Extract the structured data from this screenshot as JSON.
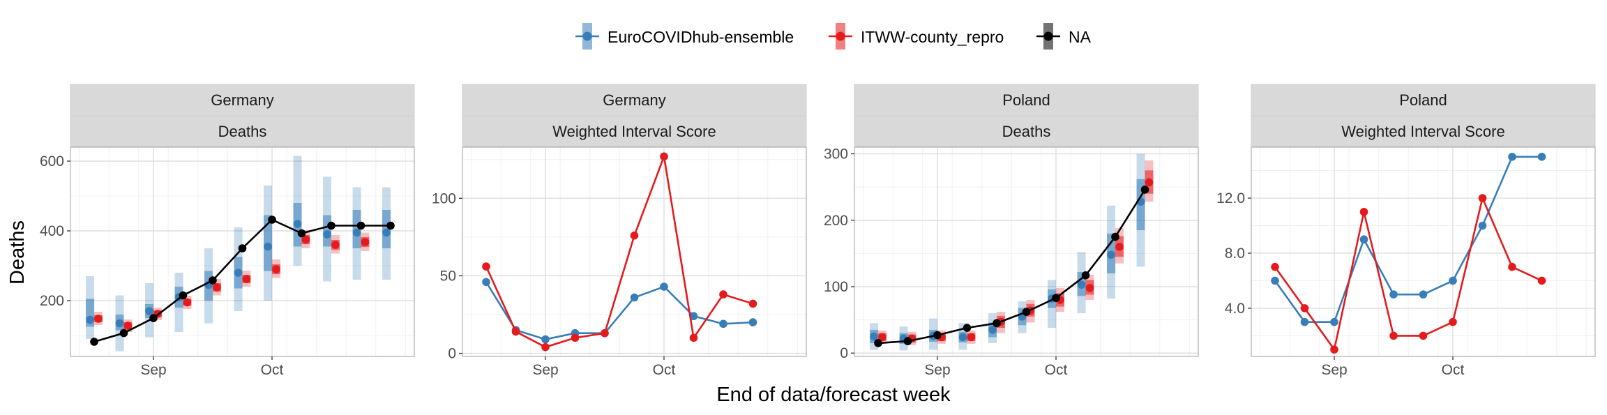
{
  "legend": {
    "items": [
      {
        "label": "EuroCOVIDhub-ensemble",
        "color": "#377EB8"
      },
      {
        "label": "ITWW-county_repro",
        "color": "#E41A1C"
      },
      {
        "label": "NA",
        "color": "#000000"
      }
    ]
  },
  "xlabel": "End of data/forecast week",
  "ylabel": "Deaths",
  "chart_data": [
    {
      "type": "line",
      "facet_top": "Germany",
      "facet_bottom": "Deaths",
      "grid": true,
      "ylim": [
        40,
        640
      ],
      "yticks": [
        200,
        400,
        600
      ],
      "ytick_labels": [
        "200",
        "400",
        "600"
      ],
      "xticks": [
        3,
        7
      ],
      "xtick_labels": [
        "Sep",
        "Oct"
      ],
      "observed": {
        "x": [
          1,
          2,
          3,
          4,
          5,
          6,
          7,
          8,
          9,
          10,
          11
        ],
        "values": [
          82,
          107,
          150,
          215,
          258,
          350,
          432,
          393,
          415,
          415,
          415
        ]
      },
      "series": [
        {
          "name": "EuroCOVIDhub-ensemble",
          "color": "#377EB8",
          "x": [
            1,
            2,
            3,
            4,
            5,
            6,
            7,
            8,
            9,
            10,
            11
          ],
          "values": [
            145,
            135,
            170,
            210,
            245,
            280,
            355,
            420,
            390,
            395,
            395
          ],
          "inner": [
            [
              125,
              205
            ],
            [
              115,
              160
            ],
            [
              150,
              190
            ],
            [
              180,
              240
            ],
            [
              200,
              285
            ],
            [
              235,
              325
            ],
            [
              285,
              445
            ],
            [
              355,
              480
            ],
            [
              355,
              445
            ],
            [
              350,
              460
            ],
            [
              350,
              460
            ]
          ],
          "outer": [
            [
              90,
              270
            ],
            [
              55,
              215
            ],
            [
              95,
              250
            ],
            [
              110,
              280
            ],
            [
              135,
              350
            ],
            [
              170,
              410
            ],
            [
              200,
              530
            ],
            [
              300,
              615
            ],
            [
              255,
              555
            ],
            [
              260,
              525
            ],
            [
              260,
              525
            ]
          ]
        },
        {
          "name": "ITWW-county_repro",
          "color": "#E41A1C",
          "x": [
            1,
            2,
            3,
            4,
            5,
            6,
            7,
            8,
            9,
            10
          ],
          "values": [
            148,
            128,
            162,
            195,
            238,
            262,
            290,
            375,
            360,
            368
          ],
          "inner": [
            [
              138,
              158
            ],
            [
              118,
              138
            ],
            [
              152,
              172
            ],
            [
              185,
              205
            ],
            [
              226,
              250
            ],
            [
              250,
              274
            ],
            [
              276,
              304
            ],
            [
              362,
              388
            ],
            [
              346,
              374
            ],
            [
              354,
              382
            ]
          ],
          "outer": [
            [
              130,
              168
            ],
            [
              110,
              146
            ],
            [
              144,
              180
            ],
            [
              176,
              214
            ],
            [
              215,
              262
            ],
            [
              240,
              286
            ],
            [
              265,
              318
            ],
            [
              350,
              402
            ],
            [
              335,
              388
            ],
            [
              342,
              395
            ]
          ]
        }
      ]
    },
    {
      "type": "line",
      "facet_top": "Germany",
      "facet_bottom": "Weighted Interval Score",
      "grid": true,
      "ylim": [
        -2,
        133
      ],
      "yticks": [
        0,
        50,
        100
      ],
      "ytick_labels": [
        "0",
        "50",
        "100"
      ],
      "xticks": [
        3,
        7
      ],
      "xtick_labels": [
        "Sep",
        "Oct"
      ],
      "series": [
        {
          "name": "EuroCOVIDhub-ensemble",
          "color": "#377EB8",
          "x": [
            1,
            2,
            3,
            4,
            5,
            6,
            7,
            8,
            9,
            10
          ],
          "values": [
            46,
            15,
            9,
            13,
            13,
            36,
            43,
            24,
            19,
            20
          ]
        },
        {
          "name": "ITWW-county_repro",
          "color": "#E41A1C",
          "x": [
            1,
            2,
            3,
            4,
            5,
            6,
            7,
            8,
            9,
            10
          ],
          "values": [
            56,
            14,
            4,
            10,
            13,
            76,
            127,
            10,
            38,
            32
          ]
        }
      ]
    },
    {
      "type": "line",
      "facet_top": "Poland",
      "facet_bottom": "Deaths",
      "grid": true,
      "ylim": [
        -5,
        310
      ],
      "yticks": [
        0,
        100,
        200,
        300
      ],
      "ytick_labels": [
        "0",
        "100",
        "200",
        "300"
      ],
      "xticks": [
        3,
        7
      ],
      "xtick_labels": [
        "Sep",
        "Oct"
      ],
      "observed": {
        "x": [
          1,
          2,
          3,
          4,
          5,
          6,
          7,
          8,
          9,
          10
        ],
        "values": [
          15,
          18,
          27,
          38,
          45,
          62,
          83,
          117,
          175,
          246
        ]
      },
      "series": [
        {
          "name": "EuroCOVIDhub-ensemble",
          "color": "#377EB8",
          "x": [
            1,
            2,
            3,
            4,
            5,
            6,
            7,
            8,
            9,
            10
          ],
          "values": [
            25,
            22,
            26,
            24,
            35,
            55,
            82,
            103,
            148,
            228
          ],
          "inner": [
            [
              15,
              35
            ],
            [
              14,
              30
            ],
            [
              17,
              35
            ],
            [
              16,
              32
            ],
            [
              24,
              46
            ],
            [
              42,
              68
            ],
            [
              68,
              96
            ],
            [
              86,
              122
            ],
            [
              120,
              180
            ],
            [
              185,
              262
            ]
          ],
          "outer": [
            [
              5,
              45
            ],
            [
              4,
              40
            ],
            [
              5,
              52
            ],
            [
              5,
              45
            ],
            [
              15,
              60
            ],
            [
              30,
              78
            ],
            [
              38,
              110
            ],
            [
              60,
              152
            ],
            [
              82,
              222
            ],
            [
              130,
              300
            ]
          ]
        },
        {
          "name": "ITWW-county_repro",
          "color": "#E41A1C",
          "x": [
            1,
            2,
            3,
            4,
            5,
            6,
            7,
            8,
            9,
            10
          ],
          "values": [
            24,
            22,
            24,
            24,
            47,
            64,
            80,
            98,
            160,
            257
          ],
          "inner": [
            [
              18,
              30
            ],
            [
              16,
              28
            ],
            [
              18,
              30
            ],
            [
              18,
              30
            ],
            [
              38,
              56
            ],
            [
              55,
              74
            ],
            [
              70,
              90
            ],
            [
              88,
              110
            ],
            [
              145,
              176
            ],
            [
              240,
              275
            ]
          ],
          "outer": [
            [
              14,
              34
            ],
            [
              12,
              32
            ],
            [
              14,
              34
            ],
            [
              14,
              34
            ],
            [
              30,
              62
            ],
            [
              46,
              80
            ],
            [
              62,
              98
            ],
            [
              80,
              118
            ],
            [
              135,
              188
            ],
            [
              228,
              290
            ]
          ]
        }
      ]
    },
    {
      "type": "line",
      "facet_top": "Poland",
      "facet_bottom": "Weighted Interval Score",
      "grid": true,
      "ylim": [
        0.5,
        15.7
      ],
      "yticks": [
        4,
        8,
        12
      ],
      "ytick_labels": [
        "4.0",
        "8.0",
        "12.0"
      ],
      "xticks": [
        3,
        7
      ],
      "xtick_labels": [
        "Sep",
        "Oct"
      ],
      "series": [
        {
          "name": "EuroCOVIDhub-ensemble",
          "color": "#377EB8",
          "x": [
            1,
            2,
            3,
            4,
            5,
            6,
            7,
            8,
            9,
            10
          ],
          "values": [
            6,
            3,
            3,
            9,
            5,
            5,
            6,
            10,
            15,
            15
          ]
        },
        {
          "name": "ITWW-county_repro",
          "color": "#E41A1C",
          "x": [
            1,
            2,
            3,
            4,
            5,
            6,
            7,
            8,
            9,
            10
          ],
          "values": [
            7,
            4,
            1,
            11,
            2,
            2,
            3,
            12,
            7,
            6
          ]
        }
      ]
    }
  ]
}
